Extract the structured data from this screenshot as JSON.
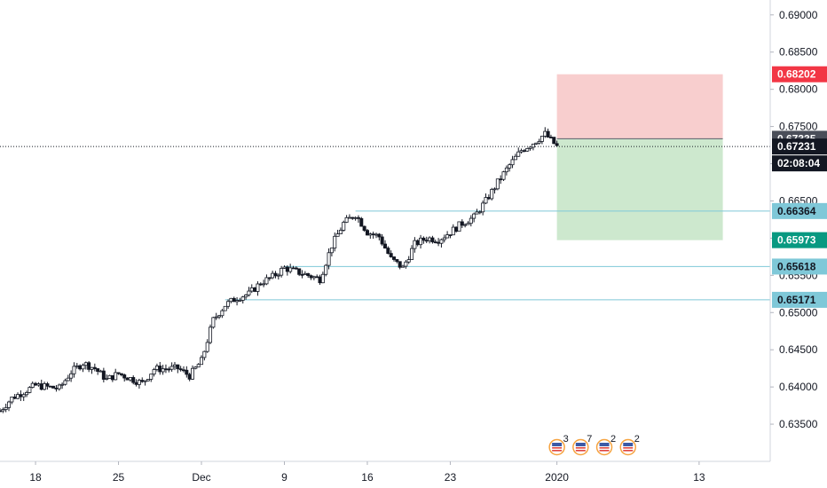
{
  "chart_data": {
    "type": "candlestick",
    "y_axis": {
      "range": [
        0.63,
        0.692
      ],
      "ticks": [
        0.635,
        0.64,
        0.645,
        0.65,
        0.655,
        0.66,
        0.665,
        0.67,
        0.675,
        0.68,
        0.685,
        0.69
      ],
      "tick_labels": [
        "0.63500",
        "0.64000",
        "0.64500",
        "0.65000",
        "0.65500",
        "0.66000",
        "0.66500",
        "0.67000",
        "0.67500",
        "0.68000",
        "0.68500",
        "0.69000"
      ]
    },
    "x_axis": {
      "labels": [
        "18",
        "25",
        "Dec",
        "9",
        "16",
        "23",
        "2020",
        "13"
      ],
      "label_dates": [
        "2019-11-18",
        "2019-11-25",
        "2019-12-02",
        "2019-12-09",
        "2019-12-16",
        "2019-12-23",
        "2020-01-01",
        "2020-01-13"
      ],
      "range_dates": [
        "2019-11-15",
        "2020-01-19"
      ]
    },
    "price_trace": [
      [
        "2019-11-15",
        0.6368
      ],
      [
        "2019-11-16",
        0.6385
      ],
      [
        "2019-11-18",
        0.6402
      ],
      [
        "2019-11-20",
        0.6398
      ],
      [
        "2019-11-21",
        0.642
      ],
      [
        "2019-11-22",
        0.6432
      ],
      [
        "2019-11-23",
        0.6425
      ],
      [
        "2019-11-24",
        0.641
      ],
      [
        "2019-11-25",
        0.6418
      ],
      [
        "2019-11-27",
        0.6405
      ],
      [
        "2019-11-28",
        0.6424
      ],
      [
        "2019-11-30",
        0.6425
      ],
      [
        "2019-12-01",
        0.6415
      ],
      [
        "2019-12-02",
        0.6435
      ],
      [
        "2019-12-03",
        0.649
      ],
      [
        "2019-12-04",
        0.651
      ],
      [
        "2019-12-05",
        0.652
      ],
      [
        "2019-12-06",
        0.6525
      ],
      [
        "2019-12-07",
        0.654
      ],
      [
        "2019-12-08",
        0.6548
      ],
      [
        "2019-12-09",
        0.656
      ],
      [
        "2019-12-10",
        0.6555
      ],
      [
        "2019-12-11",
        0.655
      ],
      [
        "2019-12-12",
        0.6545
      ],
      [
        "2019-12-13",
        0.659
      ],
      [
        "2019-12-14",
        0.662
      ],
      [
        "2019-12-15",
        0.6632
      ],
      [
        "2019-12-16",
        0.6608
      ],
      [
        "2019-12-17",
        0.6602
      ],
      [
        "2019-12-18",
        0.6572
      ],
      [
        "2019-12-19",
        0.656
      ],
      [
        "2019-12-20",
        0.6592
      ],
      [
        "2019-12-21",
        0.66
      ],
      [
        "2019-12-22",
        0.6598
      ],
      [
        "2019-12-23",
        0.6608
      ],
      [
        "2019-12-24",
        0.662
      ],
      [
        "2019-12-25",
        0.6628
      ],
      [
        "2019-12-26",
        0.665
      ],
      [
        "2019-12-27",
        0.6675
      ],
      [
        "2019-12-28",
        0.6698
      ],
      [
        "2019-12-29",
        0.6718
      ],
      [
        "2019-12-30",
        0.6728
      ],
      [
        "2019-12-31",
        0.674
      ],
      [
        "2020-01-01",
        0.6723
      ]
    ],
    "horizontal_levels": [
      {
        "label": "0.66364",
        "value": 0.66364,
        "from": "2019-12-15"
      },
      {
        "label": "0.65618",
        "value": 0.65618,
        "from": "2019-12-09"
      },
      {
        "label": "0.65171",
        "value": 0.65171,
        "from": "2019-12-04"
      }
    ],
    "position": {
      "entry": 0.67335,
      "stop": 0.68202,
      "target": 0.65973,
      "start": "2020-01-01",
      "end": "2020-01-15"
    },
    "current_price": 0.67231,
    "countdown": "02:08:04",
    "price_tags": [
      {
        "label": "0.68202",
        "value": 0.68202,
        "bg": "#f23645",
        "fg": "#ffffff"
      },
      {
        "label": "0.67335",
        "value": 0.67335,
        "bg": "#4a4e59",
        "fg": "#ffffff"
      },
      {
        "label": "0.67231",
        "value": 0.67231,
        "bg": "#131722",
        "fg": "#ffffff"
      },
      {
        "label": "0.66364",
        "value": 0.66364,
        "bg": "#7fc8d8",
        "fg": "#131722"
      },
      {
        "label": "0.65973",
        "value": 0.65973,
        "bg": "#089981",
        "fg": "#ffffff"
      },
      {
        "label": "0.65618",
        "value": 0.65618,
        "bg": "#7fc8d8",
        "fg": "#131722"
      },
      {
        "label": "0.65171",
        "value": 0.65171,
        "bg": "#7fc8d8",
        "fg": "#131722"
      }
    ],
    "events": [
      {
        "label": "3",
        "date": "2020-01-01"
      },
      {
        "label": "7",
        "date": "2020-01-03"
      },
      {
        "label": "2",
        "date": "2020-01-05"
      },
      {
        "label": "2",
        "date": "2020-01-07"
      }
    ],
    "colors": {
      "risk_zone": "#f7c5c5",
      "reward_zone": "#c8e6c9",
      "level_line": "#7fc8d8",
      "candle": "#131722",
      "event_flag": "#f6a23d"
    }
  }
}
